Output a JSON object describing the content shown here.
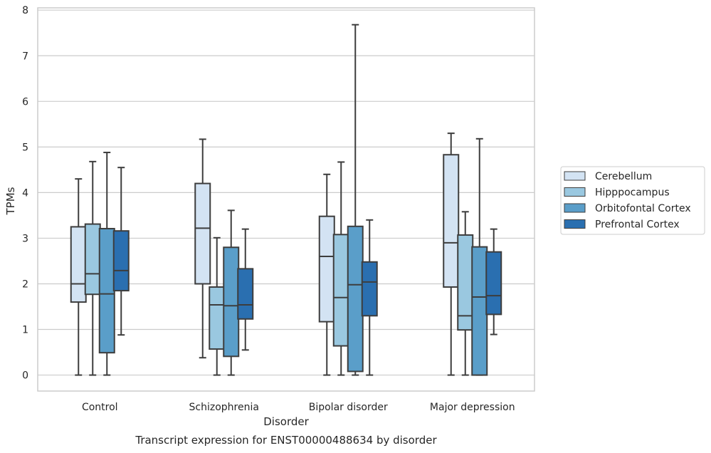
{
  "chart_data": {
    "type": "boxplot",
    "title": "Transcript expression for ENST00000488634 by disorder",
    "xlabel": "Disorder",
    "ylabel": "TPMs",
    "ylim": [
      -0.35,
      8.05
    ],
    "yticks": [
      0,
      1,
      2,
      3,
      4,
      5,
      6,
      7,
      8
    ],
    "grid": true,
    "legend_position": "right",
    "categories": [
      "Control",
      "Schizophrenia",
      "Bipolar disorder",
      "Major depression"
    ],
    "series": [
      {
        "name": "Cerebellum",
        "color": "#d3e3f3",
        "boxes": [
          {
            "whislo": 0.0,
            "q1": 1.6,
            "med": 2.0,
            "q3": 3.25,
            "whishi": 4.3
          },
          {
            "whislo": 0.38,
            "q1": 2.0,
            "med": 3.22,
            "q3": 4.2,
            "whishi": 5.17
          },
          {
            "whislo": 0.0,
            "q1": 1.17,
            "med": 2.6,
            "q3": 3.48,
            "whishi": 4.4
          },
          {
            "whislo": 0.0,
            "q1": 1.93,
            "med": 2.9,
            "q3": 4.83,
            "whishi": 5.3
          }
        ]
      },
      {
        "name": "Hipppocampus",
        "color": "#9ac8e0",
        "boxes": [
          {
            "whislo": 0.0,
            "q1": 1.77,
            "med": 2.22,
            "q3": 3.31,
            "whishi": 4.68
          },
          {
            "whislo": 0.0,
            "q1": 0.57,
            "med": 1.54,
            "q3": 1.93,
            "whishi": 3.01
          },
          {
            "whislo": 0.0,
            "q1": 0.64,
            "med": 1.7,
            "q3": 3.08,
            "whishi": 4.67
          },
          {
            "whislo": 0.0,
            "q1": 0.99,
            "med": 1.3,
            "q3": 3.07,
            "whishi": 3.58
          }
        ]
      },
      {
        "name": "Orbitofontal Cortex",
        "color": "#5a9ec9",
        "boxes": [
          {
            "whislo": 0.0,
            "q1": 0.49,
            "med": 1.78,
            "q3": 3.21,
            "whishi": 4.88
          },
          {
            "whislo": 0.0,
            "q1": 0.41,
            "med": 1.52,
            "q3": 2.8,
            "whishi": 3.61
          },
          {
            "whislo": 0.0,
            "q1": 0.08,
            "med": 1.98,
            "q3": 3.26,
            "whishi": 7.68
          },
          {
            "whislo": 0.0,
            "q1": 0.0,
            "med": 1.71,
            "q3": 2.81,
            "whishi": 5.18
          }
        ]
      },
      {
        "name": "Prefrontal Cortex",
        "color": "#2a6fb0",
        "boxes": [
          {
            "whislo": 0.88,
            "q1": 1.85,
            "med": 2.29,
            "q3": 3.16,
            "whishi": 4.55
          },
          {
            "whislo": 0.55,
            "q1": 1.23,
            "med": 1.54,
            "q3": 2.33,
            "whishi": 3.2
          },
          {
            "whislo": 0.0,
            "q1": 1.3,
            "med": 2.04,
            "q3": 2.48,
            "whishi": 3.4
          },
          {
            "whislo": 0.89,
            "q1": 1.33,
            "med": 1.74,
            "q3": 2.7,
            "whishi": 3.2
          }
        ]
      }
    ]
  }
}
